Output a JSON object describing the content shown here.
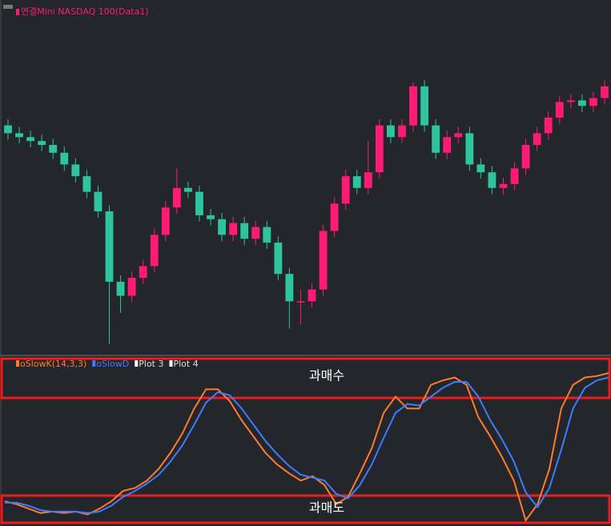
{
  "chart_data": [
    {
      "type": "candlestick",
      "title": "연결Mini NASDAQ 100(Data1)",
      "title_color": "#ff1a75",
      "up_color": "#ff1a75",
      "down_color": "#2ec4a0",
      "open": [
        300,
        290,
        285,
        280,
        275,
        265,
        250,
        235,
        215,
        190,
        100,
        82,
        105,
        120,
        160,
        195,
        220,
        215,
        185,
        180,
        160,
        175,
        155,
        170,
        150,
        110,
        75,
        75,
        90,
        165,
        200,
        235,
        220,
        240,
        300,
        285,
        300,
        350,
        300,
        265,
        285,
        290,
        250,
        240,
        220,
        225,
        245,
        275,
        290,
        310,
        330,
        332,
        325,
        335
      ],
      "high": [
        308,
        298,
        293,
        288,
        283,
        273,
        258,
        243,
        223,
        198,
        108,
        113,
        128,
        168,
        203,
        245,
        228,
        223,
        193,
        188,
        183,
        183,
        178,
        178,
        158,
        118,
        90,
        98,
        173,
        208,
        243,
        243,
        280,
        308,
        308,
        308,
        355,
        358,
        308,
        293,
        298,
        298,
        258,
        248,
        233,
        253,
        283,
        298,
        318,
        338,
        340,
        340,
        343,
        358
      ],
      "low": [
        282,
        277,
        272,
        267,
        257,
        242,
        227,
        207,
        182,
        20,
        60,
        74,
        97,
        112,
        152,
        187,
        207,
        177,
        172,
        152,
        152,
        147,
        147,
        142,
        102,
        40,
        45,
        67,
        82,
        157,
        192,
        212,
        212,
        232,
        277,
        277,
        292,
        292,
        257,
        257,
        277,
        242,
        232,
        212,
        212,
        217,
        237,
        267,
        282,
        302,
        322,
        317,
        317,
        327
      ],
      "close": [
        290,
        285,
        280,
        275,
        265,
        250,
        235,
        215,
        190,
        100,
        82,
        105,
        120,
        160,
        195,
        220,
        215,
        185,
        180,
        160,
        175,
        155,
        170,
        150,
        110,
        75,
        75,
        90,
        165,
        200,
        235,
        220,
        240,
        300,
        285,
        300,
        350,
        300,
        265,
        285,
        290,
        250,
        240,
        220,
        225,
        245,
        275,
        290,
        310,
        330,
        332,
        325,
        335,
        350
      ]
    },
    {
      "type": "line",
      "annotations": [
        "과매수",
        "과매도"
      ],
      "series": [
        {
          "name": "oSlowK(14,3,3)",
          "color": "#ff7a2f",
          "values": [
            13,
            11,
            8,
            5,
            6,
            5,
            6,
            4,
            8,
            13,
            20,
            22,
            27,
            35,
            46,
            59,
            76,
            89,
            89,
            81,
            68,
            57,
            46,
            38,
            32,
            27,
            30,
            24,
            11,
            16,
            32,
            49,
            73,
            84,
            76,
            76,
            92,
            95,
            97,
            92,
            70,
            57,
            43,
            27,
            0,
            11,
            35,
            76,
            92,
            97,
            98,
            100
          ]
        },
        {
          "name": "oSlowD",
          "color": "#3d7bff",
          "values": [
            12,
            12,
            10,
            7,
            6,
            6,
            6,
            5,
            6,
            10,
            16,
            20,
            25,
            31,
            40,
            51,
            65,
            80,
            87,
            85,
            76,
            65,
            54,
            45,
            37,
            31,
            29,
            27,
            18,
            15,
            24,
            38,
            56,
            73,
            79,
            78,
            84,
            90,
            94,
            94,
            84,
            68,
            55,
            40,
            19,
            9,
            22,
            48,
            76,
            90,
            95,
            97
          ]
        },
        {
          "name": "Plot 3",
          "color": "#ffffff"
        },
        {
          "name": "Plot 4",
          "color": "#ffffff"
        }
      ]
    }
  ]
}
